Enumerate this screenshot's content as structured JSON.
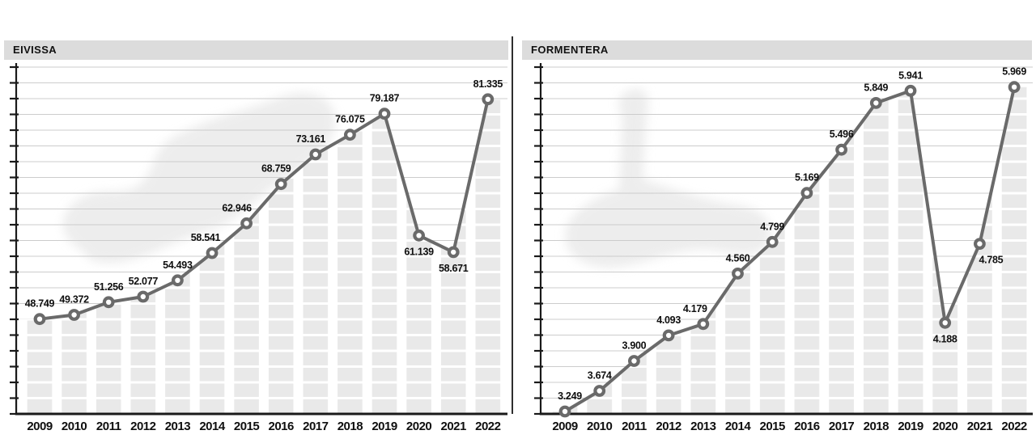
{
  "chart_data": [
    {
      "type": "line",
      "title": "EIVISSA",
      "categories": [
        "2009",
        "2010",
        "2011",
        "2012",
        "2013",
        "2014",
        "2015",
        "2016",
        "2017",
        "2018",
        "2019",
        "2020",
        "2021",
        "2022"
      ],
      "values": [
        48749,
        49372,
        51256,
        52077,
        54493,
        58541,
        62946,
        68759,
        73161,
        76075,
        79187,
        61139,
        58671,
        81335
      ],
      "value_labels": [
        "48.749",
        "49.372",
        "51.256",
        "52.077",
        "54.493",
        "58.541",
        "62.946",
        "68.759",
        "73.161",
        "76.075",
        "79.187",
        "61.139",
        "58.671",
        "81.335"
      ],
      "label_side": [
        "above",
        "above",
        "above",
        "above",
        "above",
        "above",
        "above",
        "above",
        "above",
        "above",
        "above",
        "below",
        "below",
        "above"
      ],
      "label_dx": [
        0,
        0,
        0,
        0,
        0,
        -8,
        -12,
        -6,
        -6,
        0,
        0,
        0,
        0,
        0
      ],
      "xlabel": "",
      "ylabel": "",
      "ylim": [
        34700,
        86100
      ],
      "grid": true,
      "legend": false
    },
    {
      "type": "line",
      "title": "FORMENTERA",
      "categories": [
        "2009",
        "2010",
        "2011",
        "2012",
        "2013",
        "2014",
        "2015",
        "2016",
        "2017",
        "2018",
        "2019",
        "2020",
        "2021",
        "2022"
      ],
      "values": [
        3249,
        3674,
        3900,
        4093,
        4179,
        4560,
        4799,
        5169,
        5496,
        5849,
        5941,
        4188,
        4785,
        5969
      ],
      "value_labels": [
        "3.249",
        "3.674",
        "3.900",
        "4.093",
        "4.179",
        "4.560",
        "4.799",
        "5.169",
        "5.496",
        "5.849",
        "5.941",
        "4.188",
        "4.785",
        "5.969"
      ],
      "label_side": [
        "above",
        "above",
        "above",
        "above",
        "above",
        "above",
        "above",
        "above",
        "above",
        "above",
        "above",
        "below",
        "below",
        "above"
      ],
      "label_dx": [
        6,
        0,
        0,
        0,
        -10,
        0,
        0,
        0,
        0,
        0,
        0,
        0,
        14,
        0
      ],
      "xlabel": "",
      "ylabel": "",
      "ylim": [
        3500,
        6120
      ],
      "grid": true,
      "legend": false
    }
  ],
  "styles": {
    "header_bg": "#dcdcdc",
    "header_text": "#111111",
    "divider_color": "#2e2e2e",
    "grid_color": "#cccccc",
    "axis_color": "#1a1a1a",
    "line_color": "#6a6a6a",
    "marker_fill": "#ffffff",
    "marker_stroke": "#6a6a6a",
    "fill_stripe": "#e9e9e9",
    "label_color": "#0f0f0f",
    "year_color": "#0f0f0f",
    "watermark_color": "#e7e7e7"
  }
}
